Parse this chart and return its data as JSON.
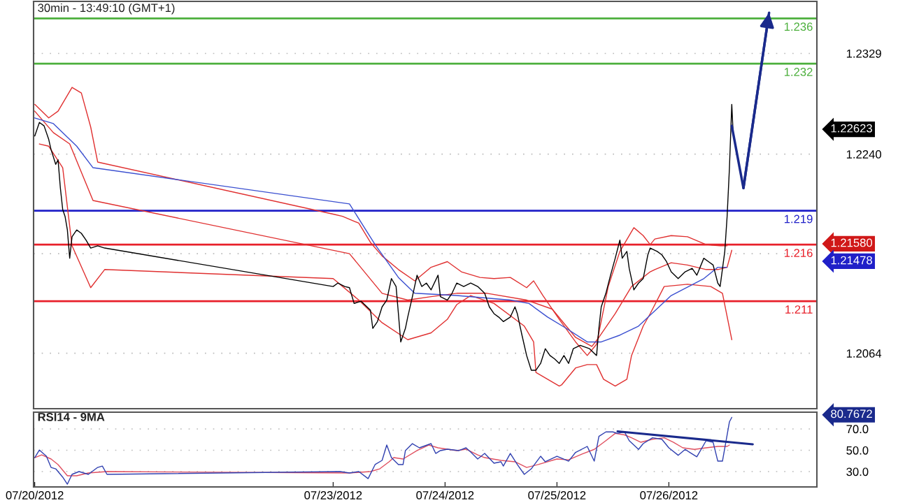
{
  "chart_data": [
    {
      "type": "line",
      "title": "30min - 13:49:10 (GMT+1)",
      "xlim": [
        "2012-07-20T07:45",
        "2012-07-27T07:45"
      ],
      "ylim": [
        1.2015,
        1.2375
      ],
      "yticks": [
        1.2064,
        {
          "value": 1.2152,
          "label": null
        },
        {
          "value": 1.224,
          "label": "1.2240"
        },
        1.2329
      ],
      "tick_labels": "y",
      "grid": "y",
      "series": [
        {
          "color": "#e03030",
          "x": [
            "2012-07-20T08:00",
            "2012-07-20T11:00",
            "2012-07-20T13:00",
            "2012-07-20T16:00",
            "2012-07-20T18:00",
            "2012-07-20T20:00",
            "2012-07-20T21:30",
            "2012-07-23T00:00",
            "2012-07-23T02:00",
            "2012-07-23T05:30",
            "2012-07-23T08:00",
            "2012-07-23T10:30",
            "2012-07-23T14:00",
            "2012-07-23T17:30",
            "2012-07-23T21:00",
            "2012-07-24T00:30",
            "2012-07-24T03:30",
            "2012-07-24T07:30",
            "2012-07-24T10:30",
            "2012-07-24T14:00",
            "2012-07-24T17:30",
            "2012-07-24T19:00",
            "2012-07-24T21:00",
            "2012-07-25T00:30",
            "2012-07-25T04:00",
            "2012-07-25T06:30",
            "2012-07-25T08:30",
            "2012-07-25T11:00",
            "2012-07-25T13:30",
            "2012-07-25T16:30",
            "2012-07-25T18:30",
            "2012-07-25T20:00",
            "2012-07-25T21:00",
            "2012-07-26T00:30",
            "2012-07-26T04:00",
            "2012-07-26T08:00",
            "2012-07-26T11:00",
            "2012-07-26T12:30"
          ],
          "values": [
            1.2284,
            1.2272,
            1.2278,
            1.2299,
            1.2294,
            1.2264,
            1.2233,
            1.2187,
            1.2185,
            1.2179,
            1.2162,
            1.215,
            1.2138,
            1.2128,
            1.214,
            1.2145,
            1.2136,
            1.2131,
            1.213,
            1.2131,
            1.2122,
            1.2128,
            1.2115,
            1.2094,
            1.2074,
            1.2062,
            1.2072,
            1.2123,
            1.2154,
            1.2175,
            1.2168,
            1.216,
            1.2165,
            1.2168,
            1.2167,
            1.216,
            1.2159,
            1.2159
          ]
        },
        {
          "color": "#e03030",
          "x": [
            "2012-07-20T08:00",
            "2012-07-20T12:00",
            "2012-07-20T15:30",
            "2012-07-20T20:30",
            "2012-07-23T03:30",
            "2012-07-23T10:30",
            "2012-07-23T16:00",
            "2012-07-23T21:00",
            "2012-07-24T02:30",
            "2012-07-24T09:00",
            "2012-07-24T17:30",
            "2012-07-24T23:00",
            "2012-07-25T04:00",
            "2012-07-25T07:30",
            "2012-07-25T09:00",
            "2012-07-25T12:30",
            "2012-07-25T16:00",
            "2012-07-25T20:00",
            "2012-07-25T21:00",
            "2012-07-26T00:30",
            "2012-07-26T04:00",
            "2012-07-26T08:00",
            "2012-07-26T10:30",
            "2012-07-26T12:30",
            "2012-07-26T13:30"
          ],
          "values": [
            1.2278,
            1.2259,
            1.2249,
            1.2199,
            1.2152,
            1.2117,
            1.2111,
            1.2114,
            1.2117,
            1.2117,
            1.2111,
            1.2103,
            1.2078,
            1.207,
            1.2078,
            1.2099,
            1.2123,
            1.2136,
            1.2138,
            1.2144,
            1.2142,
            1.2138,
            1.2138,
            1.214,
            1.2155
          ]
        },
        {
          "color": "#e03030",
          "x": [
            "2012-07-20T09:00",
            "2012-07-20T11:00",
            "2012-07-20T14:00",
            "2012-07-20T16:00",
            "2012-07-20T20:00",
            "2012-07-20T23:00",
            "2012-07-23T00:00",
            "2012-07-23T05:30",
            "2012-07-23T10:30",
            "2012-07-23T16:00",
            "2012-07-23T21:00",
            "2012-07-24T00:30",
            "2012-07-24T02:30",
            "2012-07-24T05:30",
            "2012-07-24T10:30",
            "2012-07-24T17:00",
            "2012-07-24T19:00",
            "2012-07-24T19:30",
            "2012-07-25T00:30",
            "2012-07-25T01:00",
            "2012-07-25T04:00",
            "2012-07-25T06:30",
            "2012-07-25T08:30",
            "2012-07-25T10:00",
            "2012-07-25T12:30",
            "2012-07-25T15:00",
            "2012-07-25T16:00",
            "2012-07-25T18:30",
            "2012-07-25T20:00",
            "2012-07-25T23:00",
            "2012-07-26T04:00",
            "2012-07-26T09:00",
            "2012-07-26T11:30",
            "2012-07-26T13:30"
          ],
          "values": [
            1.2249,
            1.2247,
            1.2228,
            1.2159,
            1.2122,
            1.2138,
            1.213,
            1.2111,
            1.2091,
            1.2076,
            1.2082,
            1.2094,
            1.2107,
            1.2115,
            1.2108,
            1.2088,
            1.2074,
            1.2047,
            1.2035,
            1.2036,
            1.2051,
            1.2054,
            1.2054,
            1.2041,
            1.2035,
            1.2041,
            1.2062,
            1.2088,
            1.2099,
            1.2123,
            1.2125,
            1.2123,
            1.2117,
            1.2076
          ]
        },
        {
          "color": "#3a4fd0",
          "x": [
            "2012-07-20T08:00",
            "2012-07-20T12:00",
            "2012-07-20T17:00",
            "2012-07-20T20:30",
            "2012-07-23T03:30",
            "2012-07-23T09:00",
            "2012-07-23T14:00",
            "2012-07-23T17:30",
            "2012-07-24T02:30",
            "2012-07-24T14:00",
            "2012-07-24T18:00",
            "2012-07-24T22:00",
            "2012-07-25T02:00",
            "2012-07-25T06:30",
            "2012-07-25T09:30",
            "2012-07-25T13:30",
            "2012-07-25T17:30",
            "2012-07-26T00:30",
            "2012-07-26T07:30",
            "2012-07-26T10:30",
            "2012-07-26T12:30"
          ],
          "values": [
            1.2272,
            1.2267,
            1.2247,
            1.2228,
            1.2196,
            1.216,
            1.2131,
            1.2117,
            1.2115,
            1.2111,
            1.2108,
            1.2096,
            1.2086,
            1.2074,
            1.2074,
            1.208,
            1.2088,
            1.2115,
            1.213,
            1.214,
            1.214
          ]
        },
        {
          "color": "#000000",
          "x": [
            "2012-07-20T08:00",
            "2012-07-20T09:00",
            "2012-07-20T10:00",
            "2012-07-20T11:00",
            "2012-07-20T11:30",
            "2012-07-20T12:30",
            "2012-07-20T13:00",
            "2012-07-20T13:30",
            "2012-07-20T14:00",
            "2012-07-20T14:30",
            "2012-07-20T15:00",
            "2012-07-20T15:30",
            "2012-07-20T16:00",
            "2012-07-20T17:00",
            "2012-07-20T18:00",
            "2012-07-20T19:00",
            "2012-07-20T20:00",
            "2012-07-20T21:30",
            "2012-07-20T23:00",
            "2012-07-23T00:00",
            "2012-07-23T01:00",
            "2012-07-23T02:30",
            "2012-07-23T03:30",
            "2012-07-23T04:30",
            "2012-07-23T06:00",
            "2012-07-23T08:00",
            "2012-07-23T08:30",
            "2012-07-23T09:30",
            "2012-07-23T10:30",
            "2012-07-23T11:30",
            "2012-07-23T12:30",
            "2012-07-23T13:30",
            "2012-07-23T14:00",
            "2012-07-23T14:30",
            "2012-07-23T15:30",
            "2012-07-23T16:00",
            "2012-07-23T17:00",
            "2012-07-23T18:00",
            "2012-07-23T19:00",
            "2012-07-23T20:00",
            "2012-07-23T21:00",
            "2012-07-23T22:30",
            "2012-07-23T23:00",
            "2012-07-24T00:30",
            "2012-07-24T01:30",
            "2012-07-24T02:30",
            "2012-07-24T04:00",
            "2012-07-24T05:30",
            "2012-07-24T07:00",
            "2012-07-24T08:30",
            "2012-07-24T09:30",
            "2012-07-24T10:30",
            "2012-07-24T11:30",
            "2012-07-24T12:30",
            "2012-07-24T14:00",
            "2012-07-24T15:00",
            "2012-07-24T15:30",
            "2012-07-24T16:30",
            "2012-07-24T17:30",
            "2012-07-24T18:30",
            "2012-07-24T19:30",
            "2012-07-24T20:30",
            "2012-07-24T21:30",
            "2012-07-24T22:30",
            "2012-07-24T23:30",
            "2012-07-25T00:30",
            "2012-07-25T01:30",
            "2012-07-25T02:30",
            "2012-07-25T03:30",
            "2012-07-25T05:00",
            "2012-07-25T07:00",
            "2012-07-25T08:30",
            "2012-07-25T09:00",
            "2012-07-25T09:30",
            "2012-07-25T10:30",
            "2012-07-25T11:30",
            "2012-07-25T12:30",
            "2012-07-25T13:30",
            "2012-07-25T14:00",
            "2012-07-25T15:00",
            "2012-07-25T15:30",
            "2012-07-25T16:30",
            "2012-07-25T17:30",
            "2012-07-25T18:30",
            "2012-07-25T19:30",
            "2012-07-25T20:00",
            "2012-07-25T21:30",
            "2012-07-25T22:30",
            "2012-07-25T23:30",
            "2012-07-26T00:30",
            "2012-07-26T02:00",
            "2012-07-26T03:30",
            "2012-07-26T05:00",
            "2012-07-26T06:00",
            "2012-07-26T07:30",
            "2012-07-26T08:30",
            "2012-07-26T09:30",
            "2012-07-26T10:30",
            "2012-07-26T11:00",
            "2012-07-26T12:00",
            "2012-07-26T12:30",
            "2012-07-26T13:00",
            "2012-07-26T13:30",
            "2012-07-26T13:45"
          ],
          "values": [
            1.2256,
            1.2268,
            1.2265,
            1.2253,
            1.2244,
            1.2231,
            1.2235,
            1.221,
            1.2191,
            1.2185,
            1.2173,
            1.2148,
            1.2167,
            1.2173,
            1.217,
            1.2164,
            1.2157,
            1.2159,
            1.2157,
            1.2123,
            1.2126,
            1.2123,
            1.2122,
            1.2108,
            1.211,
            1.2102,
            1.2086,
            1.2092,
            1.2105,
            1.2111,
            1.213,
            1.2123,
            1.2099,
            1.2074,
            1.2086,
            1.2096,
            1.2114,
            1.2133,
            1.2123,
            1.2126,
            1.212,
            1.2133,
            1.2114,
            1.2111,
            1.2117,
            1.2126,
            1.2123,
            1.2126,
            1.2123,
            1.2117,
            1.2105,
            1.2099,
            1.2096,
            1.2092,
            1.2096,
            1.2105,
            1.2099,
            1.208,
            1.2062,
            1.2049,
            1.2049,
            1.2055,
            1.2068,
            1.2062,
            1.2059,
            1.2055,
            1.2062,
            1.2055,
            1.2068,
            1.2071,
            1.2068,
            1.2062,
            1.2086,
            1.2105,
            1.2117,
            1.2133,
            1.2148,
            1.2164,
            1.2148,
            1.2154,
            1.2139,
            1.212,
            1.2126,
            1.213,
            1.2151,
            1.2157,
            1.2154,
            1.2151,
            1.2145,
            1.2136,
            1.213,
            1.2136,
            1.2139,
            1.2133,
            1.2148,
            1.2145,
            1.2142,
            1.2126,
            1.2123,
            1.2154,
            1.2185,
            1.2228,
            1.2284,
            1.2262
          ]
        },
        {
          "color": "#1a2a8c",
          "x": [
            "2012-07-26T13:30",
            "2012-07-26T16:00",
            "2012-07-26T21:30"
          ],
          "values": [
            1.2265,
            1.221,
            1.2365
          ]
        }
      ],
      "ref_lines": [
        {
          "axis": "y",
          "value": 1.236,
          "label": "1.236",
          "color": "#4caf3c"
        },
        {
          "axis": "y",
          "value": 1.232,
          "label": "1.232",
          "color": "#4caf3c"
        },
        {
          "axis": "y",
          "value": 1.219,
          "label": "1.219",
          "color": "#2020c8"
        },
        {
          "axis": "y",
          "value": 1.216,
          "label": "1.216",
          "color": "#e8202a"
        },
        {
          "axis": "y",
          "value": 1.211,
          "label": "1.211",
          "color": "#e8202a"
        }
      ],
      "annotations": [
        "1.22623",
        "1.21580",
        "1.21478"
      ]
    },
    {
      "type": "line",
      "title": "RSI14 - 9MA",
      "xlim": [
        "2012-07-20T07:45",
        "2012-07-27T07:45"
      ],
      "ylim": [
        15.6,
        85.7
      ],
      "xticks": [
        {
          "value": "2012-07-20T08:00",
          "label": "07/20/2012"
        },
        {
          "value": "2012-07-23T00:00",
          "label": "07/23/2012"
        },
        {
          "value": "2012-07-24T00:00",
          "label": "07/24/2012"
        },
        {
          "value": "2012-07-25T00:00",
          "label": "07/25/2012"
        },
        {
          "value": "2012-07-26T00:00",
          "label": "07/26/2012"
        }
      ],
      "yticks": [
        {
          "value": 30,
          "label": "30.0"
        },
        {
          "value": 50,
          "label": "50.0"
        },
        {
          "value": 70,
          "label": "70.0"
        }
      ],
      "grid": "y",
      "series": [
        {
          "color": "#e05060",
          "x": [
            "2012-07-20T08:00",
            "2012-07-20T09:30",
            "2012-07-20T11:30",
            "2012-07-20T13:00",
            "2012-07-20T15:00",
            "2012-07-20T17:00",
            "2012-07-20T19:30",
            "2012-07-20T23:30",
            "2012-07-23T03:30",
            "2012-07-23T08:00",
            "2012-07-23T10:00",
            "2012-07-23T12:00",
            "2012-07-23T13:00",
            "2012-07-23T15:00",
            "2012-07-23T18:00",
            "2012-07-23T20:30",
            "2012-07-23T22:30",
            "2012-07-24T02:30",
            "2012-07-24T04:30",
            "2012-07-24T07:00",
            "2012-07-24T08:30",
            "2012-07-24T12:00",
            "2012-07-24T15:00",
            "2012-07-24T17:30",
            "2012-07-24T20:00",
            "2012-07-25T00:00",
            "2012-07-25T02:30",
            "2012-07-25T05:30",
            "2012-07-25T08:00",
            "2012-07-25T10:30",
            "2012-07-25T12:30",
            "2012-07-25T14:30",
            "2012-07-25T16:00",
            "2012-07-25T18:00",
            "2012-07-25T20:30",
            "2012-07-25T23:00",
            "2012-07-26T01:00",
            "2012-07-26T03:00",
            "2012-07-26T05:30",
            "2012-07-26T08:00",
            "2012-07-26T10:30",
            "2012-07-26T12:30",
            "2012-07-26T13:00"
          ],
          "values": [
            43.1,
            45.7,
            41.8,
            36.6,
            26.1,
            26.1,
            28.7,
            30.0,
            28.7,
            30.0,
            32.6,
            39.2,
            43.1,
            41.8,
            49.7,
            54.9,
            52.3,
            49.7,
            51.0,
            45.7,
            43.1,
            40.5,
            39.2,
            33.9,
            36.6,
            41.8,
            41.1,
            46.7,
            50.8,
            59.0,
            65.8,
            64.4,
            61.7,
            57.5,
            60.3,
            61.7,
            57.5,
            52.3,
            50.8,
            52.3,
            53.6,
            53.6,
            54.9
          ]
        },
        {
          "color": "#3040b0",
          "x": [
            "2012-07-20T08:00",
            "2012-07-20T09:00",
            "2012-07-20T10:30",
            "2012-07-20T11:30",
            "2012-07-20T12:30",
            "2012-07-20T14:00",
            "2012-07-20T15:00",
            "2012-07-20T16:00",
            "2012-07-20T17:30",
            "2012-07-20T19:30",
            "2012-07-20T21:30",
            "2012-07-20T22:30",
            "2012-07-20T23:30",
            "2012-07-23T01:30",
            "2012-07-23T03:30",
            "2012-07-23T05:30",
            "2012-07-23T07:30",
            "2012-07-23T09:00",
            "2012-07-23T10:30",
            "2012-07-23T11:30",
            "2012-07-23T12:30",
            "2012-07-23T14:00",
            "2012-07-23T15:00",
            "2012-07-23T15:30",
            "2012-07-23T17:00",
            "2012-07-23T18:30",
            "2012-07-23T21:00",
            "2012-07-23T22:00",
            "2012-07-23T23:00",
            "2012-07-24T00:30",
            "2012-07-24T03:00",
            "2012-07-24T04:30",
            "2012-07-24T05:30",
            "2012-07-24T07:00",
            "2012-07-24T08:30",
            "2012-07-24T10:30",
            "2012-07-24T12:00",
            "2012-07-24T12:30",
            "2012-07-24T14:00",
            "2012-07-24T15:30",
            "2012-07-24T17:00",
            "2012-07-24T18:30",
            "2012-07-24T20:30",
            "2012-07-24T21:30",
            "2012-07-25T00:00",
            "2012-07-25T01:00",
            "2012-07-25T02:30",
            "2012-07-25T04:00",
            "2012-07-25T06:30",
            "2012-07-25T08:00",
            "2012-07-25T09:00",
            "2012-07-25T10:30",
            "2012-07-25T12:00",
            "2012-07-25T13:00",
            "2012-07-25T14:30",
            "2012-07-25T15:30",
            "2012-07-25T17:30",
            "2012-07-25T18:30",
            "2012-07-25T20:30",
            "2012-07-25T22:30",
            "2012-07-26T00:00",
            "2012-07-26T02:00",
            "2012-07-26T03:30",
            "2012-07-26T04:30",
            "2012-07-26T06:00",
            "2012-07-26T08:00",
            "2012-07-26T09:30",
            "2012-07-26T10:30",
            "2012-07-26T11:30",
            "2012-07-26T12:30",
            "2012-07-26T13:00",
            "2012-07-26T13:30"
          ],
          "values": [
            43.1,
            50.2,
            44.4,
            33.9,
            32.6,
            24.8,
            18.2,
            27.4,
            30.0,
            27.4,
            33.9,
            35.2,
            27.4,
            30.0,
            28.7,
            30.0,
            23.4,
            36.6,
            40.5,
            54.9,
            43.1,
            36.6,
            36.6,
            49.7,
            56.2,
            52.3,
            56.2,
            47.0,
            49.7,
            51.0,
            49.7,
            52.3,
            48.4,
            41.8,
            47.0,
            37.9,
            39.2,
            35.2,
            47.0,
            36.6,
            27.4,
            32.6,
            44.4,
            39.2,
            44.4,
            42.5,
            39.8,
            48.0,
            53.6,
            39.8,
            63.0,
            67.2,
            67.2,
            65.8,
            67.2,
            59.0,
            50.8,
            56.2,
            61.7,
            60.3,
            52.3,
            45.3,
            50.8,
            48.0,
            43.9,
            59.0,
            57.5,
            39.8,
            39.8,
            64.4,
            76.7,
            80.8
          ]
        },
        {
          "color": "#1a2a8c",
          "x": [
            "2012-07-25T13:00",
            "2012-07-26T18:00"
          ],
          "values": [
            67.7,
            55.6
          ]
        }
      ],
      "annotations": [
        "80.7672"
      ]
    }
  ]
}
